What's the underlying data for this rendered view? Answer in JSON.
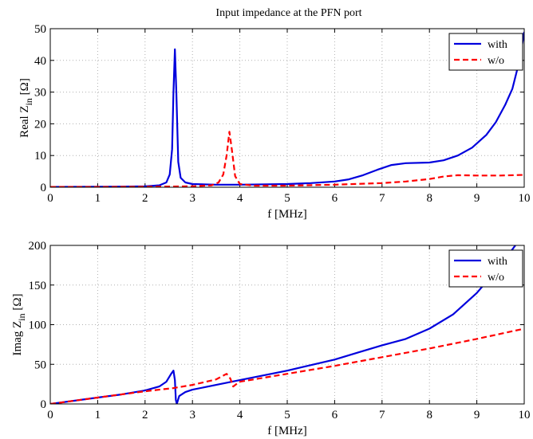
{
  "title": "Input impedance at the PFN port",
  "chart_data": [
    {
      "type": "line",
      "title": "Input impedance at the PFN port",
      "xlabel": "f [MHz]",
      "ylabel": "Real Z_in [Ω]",
      "ylabel_base": "Real Z",
      "ylabel_sub": "in",
      "ylabel_unit": " [Ω]",
      "xlim": [
        0,
        10
      ],
      "ylim": [
        0,
        50
      ],
      "xticks": [
        0,
        1,
        2,
        3,
        4,
        5,
        6,
        7,
        8,
        9,
        10
      ],
      "yticks": [
        0,
        10,
        20,
        30,
        40,
        50
      ],
      "grid": true,
      "legend_position": "top-right",
      "series": [
        {
          "name": "with",
          "color": "#0000dd",
          "style": "solid",
          "points": [
            [
              0,
              0.1
            ],
            [
              1,
              0.15
            ],
            [
              1.5,
              0.2
            ],
            [
              2,
              0.3
            ],
            [
              2.3,
              0.6
            ],
            [
              2.45,
              1.5
            ],
            [
              2.52,
              4
            ],
            [
              2.57,
              12
            ],
            [
              2.6,
              30
            ],
            [
              2.63,
              43.5
            ],
            [
              2.66,
              30
            ],
            [
              2.7,
              8
            ],
            [
              2.75,
              3
            ],
            [
              2.85,
              1.5
            ],
            [
              3,
              1
            ],
            [
              3.5,
              0.8
            ],
            [
              4,
              0.8
            ],
            [
              5,
              1
            ],
            [
              5.5,
              1.3
            ],
            [
              6,
              1.8
            ],
            [
              6.3,
              2.5
            ],
            [
              6.6,
              3.8
            ],
            [
              6.9,
              5.5
            ],
            [
              7.2,
              7
            ],
            [
              7.5,
              7.6
            ],
            [
              8,
              7.8
            ],
            [
              8.3,
              8.5
            ],
            [
              8.6,
              10
            ],
            [
              8.9,
              12.5
            ],
            [
              9.2,
              16.5
            ],
            [
              9.4,
              20.5
            ],
            [
              9.6,
              26
            ],
            [
              9.75,
              31
            ],
            [
              9.9,
              40
            ],
            [
              10,
              49
            ]
          ]
        },
        {
          "name": "w/o",
          "color": "#ff0000",
          "style": "dashed",
          "points": [
            [
              0,
              0.1
            ],
            [
              1,
              0.1
            ],
            [
              2,
              0.15
            ],
            [
              3,
              0.3
            ],
            [
              3.4,
              0.6
            ],
            [
              3.55,
              1.5
            ],
            [
              3.65,
              4
            ],
            [
              3.72,
              10
            ],
            [
              3.78,
              17.5
            ],
            [
              3.83,
              12
            ],
            [
              3.9,
              3.5
            ],
            [
              4,
              1
            ],
            [
              4.3,
              0.5
            ],
            [
              5,
              0.5
            ],
            [
              6,
              0.8
            ],
            [
              7,
              1.3
            ],
            [
              7.5,
              1.8
            ],
            [
              8,
              2.6
            ],
            [
              8.3,
              3.4
            ],
            [
              8.6,
              3.8
            ],
            [
              9,
              3.7
            ],
            [
              9.5,
              3.7
            ],
            [
              10,
              3.9
            ]
          ]
        }
      ]
    },
    {
      "type": "line",
      "xlabel": "f [MHz]",
      "ylabel": "Imag Z_in [Ω]",
      "ylabel_base": "Imag Z",
      "ylabel_sub": "in",
      "ylabel_unit": " [Ω]",
      "xlim": [
        0,
        10
      ],
      "ylim": [
        0,
        200
      ],
      "xticks": [
        0,
        1,
        2,
        3,
        4,
        5,
        6,
        7,
        8,
        9,
        10
      ],
      "yticks": [
        0,
        50,
        100,
        150,
        200
      ],
      "grid": true,
      "legend_position": "top-right",
      "series": [
        {
          "name": "with",
          "color": "#0000dd",
          "style": "solid",
          "points": [
            [
              0,
              0
            ],
            [
              1,
              8
            ],
            [
              1.5,
              12
            ],
            [
              2,
              17
            ],
            [
              2.3,
              22
            ],
            [
              2.45,
              28
            ],
            [
              2.55,
              38
            ],
            [
              2.6,
              42
            ],
            [
              2.63,
              30
            ],
            [
              2.65,
              5
            ],
            [
              2.67,
              0
            ],
            [
              2.72,
              10
            ],
            [
              2.85,
              15
            ],
            [
              3,
              18
            ],
            [
              3.5,
              24
            ],
            [
              4,
              30
            ],
            [
              5,
              42
            ],
            [
              6,
              56
            ],
            [
              6.5,
              65
            ],
            [
              7,
              74
            ],
            [
              7.5,
              82
            ],
            [
              8,
              95
            ],
            [
              8.5,
              113
            ],
            [
              9,
              140
            ],
            [
              9.5,
              175
            ],
            [
              10,
              215
            ]
          ]
        },
        {
          "name": "w/o",
          "color": "#ff0000",
          "style": "dashed",
          "points": [
            [
              0,
              0
            ],
            [
              1,
              8
            ],
            [
              2,
              16
            ],
            [
              2.6,
              20
            ],
            [
              3,
              24
            ],
            [
              3.5,
              31
            ],
            [
              3.72,
              38
            ],
            [
              3.8,
              32
            ],
            [
              3.86,
              22
            ],
            [
              3.95,
              26
            ],
            [
              4,
              28
            ],
            [
              5,
              38
            ],
            [
              6,
              48
            ],
            [
              7,
              59
            ],
            [
              8,
              70
            ],
            [
              9,
              82
            ],
            [
              10,
              95
            ]
          ]
        }
      ]
    }
  ]
}
